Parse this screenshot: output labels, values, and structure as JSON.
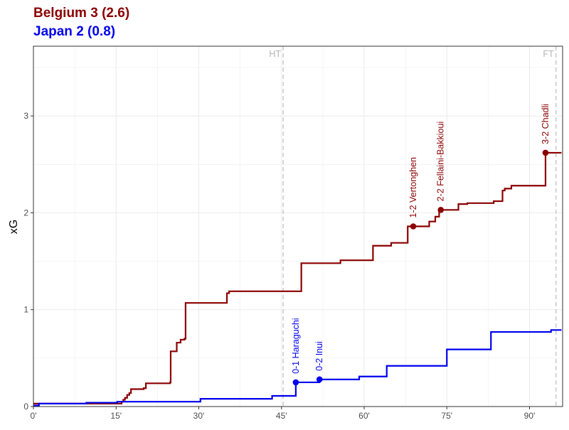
{
  "title": {
    "home_line": "Belgium 3 (2.6)",
    "away_line": "Japan 2 (0.8)"
  },
  "colors": {
    "home": "#8b0000",
    "away": "#0000ee",
    "period_line": "#bdbdbd",
    "grid": "#ebebeb",
    "panel_border": "#333333"
  },
  "chart_data": {
    "type": "line",
    "step": true,
    "xlabel": "",
    "ylabel": "xG",
    "xlim": [
      0,
      96
    ],
    "ylim": [
      0,
      3.72
    ],
    "x_ticks": [
      0,
      15,
      30,
      45,
      60,
      75,
      90
    ],
    "x_tick_labels": [
      "0'",
      "15'",
      "30'",
      "45'",
      "60'",
      "75'",
      "90'"
    ],
    "y_ticks": [
      0,
      1,
      2,
      3
    ],
    "y_tick_labels": [
      "0",
      "1",
      "2",
      "3"
    ],
    "grid": true,
    "period_markers": [
      {
        "x": 45.3,
        "label": "HT"
      },
      {
        "x": 94.8,
        "label": "FT"
      }
    ],
    "series": [
      {
        "name": "Belgium",
        "color_key": "home",
        "points": [
          [
            0,
            0.03
          ],
          [
            15.4,
            0.03
          ],
          [
            16.0,
            0.05
          ],
          [
            16.3,
            0.07
          ],
          [
            16.6,
            0.09
          ],
          [
            17.0,
            0.12
          ],
          [
            17.4,
            0.14
          ],
          [
            17.7,
            0.18
          ],
          [
            20.0,
            0.19
          ],
          [
            20.4,
            0.24
          ],
          [
            24.8,
            0.25
          ],
          [
            24.9,
            0.57
          ],
          [
            25.9,
            0.57
          ],
          [
            26.0,
            0.66
          ],
          [
            26.5,
            0.66
          ],
          [
            26.7,
            0.69
          ],
          [
            27.4,
            0.7
          ],
          [
            27.6,
            1.07
          ],
          [
            34.8,
            1.07
          ],
          [
            35.1,
            1.17
          ],
          [
            35.5,
            1.19
          ],
          [
            48.4,
            1.19
          ],
          [
            48.6,
            1.48
          ],
          [
            55.5,
            1.48
          ],
          [
            55.7,
            1.51
          ],
          [
            61.4,
            1.51
          ],
          [
            61.6,
            1.66
          ],
          [
            64.8,
            1.66
          ],
          [
            64.9,
            1.69
          ],
          [
            67.7,
            1.69
          ],
          [
            67.9,
            1.86
          ],
          [
            71.6,
            1.86
          ],
          [
            71.8,
            1.91
          ],
          [
            72.7,
            1.91
          ],
          [
            72.9,
            1.96
          ],
          [
            73.5,
            1.96
          ],
          [
            73.6,
            2.03
          ],
          [
            76.9,
            2.03
          ],
          [
            77.1,
            2.09
          ],
          [
            78.6,
            2.09
          ],
          [
            78.7,
            2.1
          ],
          [
            83.4,
            2.1
          ],
          [
            83.5,
            2.12
          ],
          [
            84.9,
            2.12
          ],
          [
            85.1,
            2.23
          ],
          [
            85.5,
            2.25
          ],
          [
            86.6,
            2.25
          ],
          [
            86.7,
            2.28
          ],
          [
            92.8,
            2.28
          ],
          [
            92.9,
            2.62
          ],
          [
            95.8,
            2.62
          ]
        ],
        "goals": [
          {
            "x": 68.9,
            "y": 1.86,
            "label": "1-2 Vertonghen"
          },
          {
            "x": 73.9,
            "y": 2.03,
            "label": "2-2 Fellaini-Bakkioui"
          },
          {
            "x": 92.9,
            "y": 2.62,
            "label": "3-2 Chadli"
          }
        ]
      },
      {
        "name": "Japan",
        "color_key": "away",
        "points": [
          [
            0,
            0.01
          ],
          [
            0.9,
            0.01
          ],
          [
            1.0,
            0.03
          ],
          [
            9.5,
            0.03
          ],
          [
            9.6,
            0.04
          ],
          [
            15.0,
            0.04
          ],
          [
            15.2,
            0.05
          ],
          [
            30.1,
            0.05
          ],
          [
            30.3,
            0.08
          ],
          [
            43.1,
            0.08
          ],
          [
            43.3,
            0.11
          ],
          [
            47.5,
            0.11
          ],
          [
            47.6,
            0.25
          ],
          [
            51.7,
            0.25
          ],
          [
            51.9,
            0.28
          ],
          [
            58.9,
            0.28
          ],
          [
            59.1,
            0.31
          ],
          [
            63.9,
            0.31
          ],
          [
            64.1,
            0.42
          ],
          [
            74.8,
            0.42
          ],
          [
            75.0,
            0.59
          ],
          [
            82.8,
            0.59
          ],
          [
            83.0,
            0.77
          ],
          [
            93.7,
            0.77
          ],
          [
            93.9,
            0.79
          ],
          [
            95.8,
            0.79
          ]
        ],
        "goals": [
          {
            "x": 47.6,
            "y": 0.25,
            "label": "0-1 Haraguchi"
          },
          {
            "x": 51.9,
            "y": 0.28,
            "label": "0-2 Inui"
          }
        ]
      }
    ]
  }
}
